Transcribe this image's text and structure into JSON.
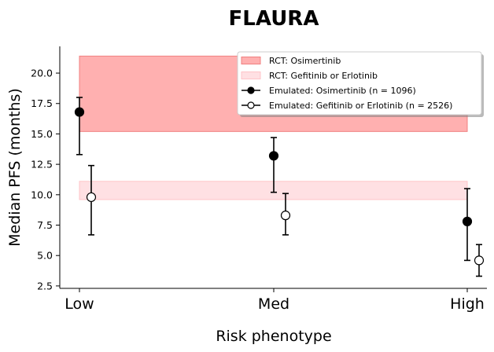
{
  "chart_data": {
    "type": "scatter",
    "title": "FLAURA",
    "xlabel": "Risk phenotype",
    "ylabel": "Median PFS (months)",
    "categories": [
      "Low",
      "Med",
      "High"
    ],
    "ylim": [
      2.3,
      22.2
    ],
    "yticks": [
      2.5,
      5.0,
      7.5,
      10.0,
      12.5,
      15.0,
      17.5,
      20.0
    ],
    "ytick_labels": [
      "2.5",
      "5.0",
      "7.5",
      "10.0",
      "12.5",
      "15.0",
      "17.5",
      "20.0"
    ],
    "grid": false,
    "legend_position": "top-right",
    "bands": [
      {
        "name": "RCT: Osimertinib",
        "low": 15.2,
        "high": 21.4,
        "color": "#ffb0b0",
        "edge": "#f08080"
      },
      {
        "name": "RCT: Gefitinib or Erlotinib",
        "low": 9.6,
        "high": 11.1,
        "color": "#ffe0e3",
        "edge": "#ffc4c8"
      }
    ],
    "series": [
      {
        "name": "Emulated: Osimertinib (n = 1096)",
        "marker": "filled",
        "color": "#000000",
        "values": [
          16.8,
          13.2,
          7.8
        ],
        "lower": [
          13.3,
          10.2,
          4.6
        ],
        "upper": [
          18.0,
          14.7,
          10.5
        ]
      },
      {
        "name": "Emulated: Gefitinib or Erlotinib (n = 2526)",
        "marker": "open",
        "color": "#000000",
        "values": [
          9.8,
          8.3,
          4.6
        ],
        "lower": [
          6.7,
          6.7,
          3.3
        ],
        "upper": [
          12.4,
          10.1,
          5.9
        ]
      }
    ]
  }
}
